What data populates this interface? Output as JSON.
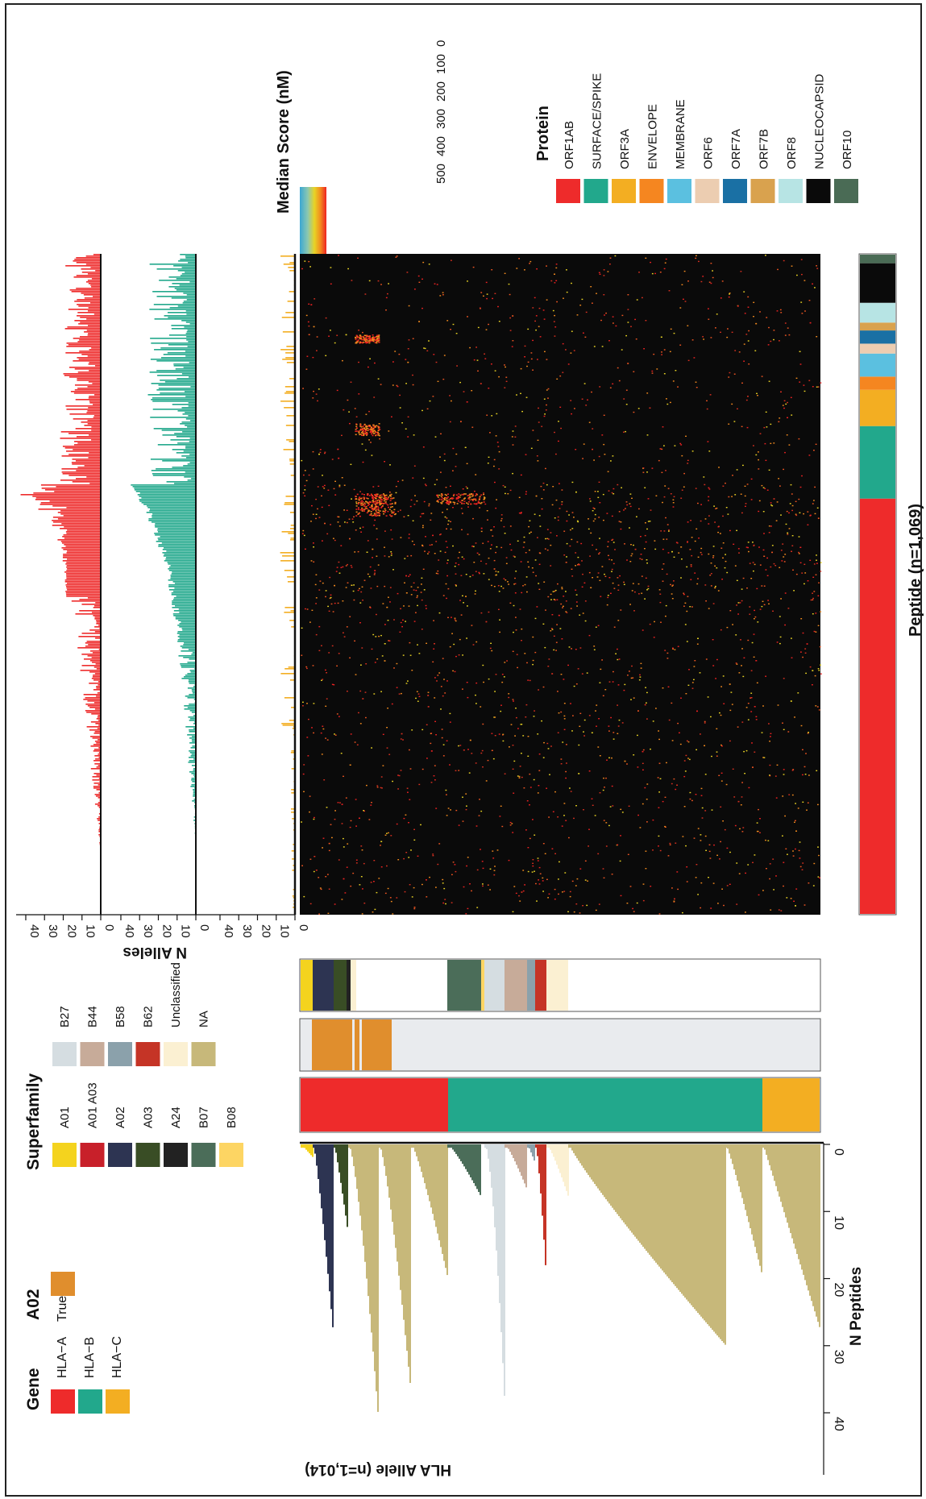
{
  "legends": {
    "gene": {
      "title": "Gene",
      "items": [
        {
          "label": "HLA−A",
          "color": "#ee2b2b"
        },
        {
          "label": "HLA−B",
          "color": "#22a88c"
        },
        {
          "label": "HLA−C",
          "color": "#f3ae22"
        }
      ]
    },
    "a02": {
      "title": "A02",
      "items": [
        {
          "label": "True",
          "color": "#e08e2d"
        }
      ]
    },
    "superfamily": {
      "title": "Superfamily",
      "col1": [
        {
          "label": "A01",
          "color": "#f4d31e"
        },
        {
          "label": "A01 A03",
          "color": "#c8202a"
        },
        {
          "label": "A02",
          "color": "#2d3452"
        },
        {
          "label": "A03",
          "color": "#394d25"
        },
        {
          "label": "A24",
          "color": "#222222"
        },
        {
          "label": "B07",
          "color": "#4b6d59"
        },
        {
          "label": "B08",
          "color": "#fdd563"
        }
      ],
      "col2": [
        {
          "label": "B27",
          "color": "#d5dde1"
        },
        {
          "label": "B44",
          "color": "#c7ab99"
        },
        {
          "label": "B58",
          "color": "#8ba1ab"
        },
        {
          "label": "B62",
          "color": "#c53426"
        },
        {
          "label": "Unclassified",
          "color": "#fbf0d2"
        },
        {
          "label": "NA",
          "color": "#c7b87a"
        }
      ]
    },
    "median": {
      "title": "Median Score (nM)",
      "ticks": [
        "500",
        "400",
        "300",
        "200",
        "100",
        "0"
      ],
      "stops": [
        "#3aa7d3",
        "#8cc8b0",
        "#e8d324",
        "#f28a1e",
        "#ee2222"
      ]
    },
    "protein": {
      "title": "Protein",
      "items": [
        {
          "label": "ORF1AB",
          "color": "#ee2b2b"
        },
        {
          "label": "SURFACE/SPIKE",
          "color": "#22a88c"
        },
        {
          "label": "ORF3A",
          "color": "#f3ae22"
        },
        {
          "label": "ENVELOPE",
          "color": "#f58620"
        },
        {
          "label": "MEMBRANE",
          "color": "#5bc0e0"
        },
        {
          "label": "ORF6",
          "color": "#eccdb1"
        },
        {
          "label": "ORF7A",
          "color": "#1a70a4"
        },
        {
          "label": "ORF7B",
          "color": "#d9a24e"
        },
        {
          "label": "ORF8",
          "color": "#b7e4e4"
        },
        {
          "label": "NUCLEOCAPSID",
          "color": "#0a0a0a"
        },
        {
          "label": "ORF10",
          "color": "#4a6b55"
        }
      ]
    }
  },
  "axes": {
    "hla_axis_label": "HLA Allele (n=1,014)",
    "n_peptides_label": "N Peptides",
    "n_peptides_ticks": [
      "0",
      "10",
      "20",
      "30",
      "40"
    ],
    "n_alleles_label": "N Alleles",
    "n_alleles_ticks": [
      "40",
      "30",
      "20",
      "10",
      "0"
    ],
    "peptide_axis_label": "Peptide (n=1,069)"
  },
  "chart_data": {
    "type": "heatmap",
    "description_of_layout": "rotated heatmap of HLA alleles vs SARS-CoV-2 peptides",
    "n_alleles_total": 1014,
    "n_peptides_total": 1069,
    "gene_fraction": {
      "HLA-A": 0.29,
      "HLA-B": 0.61,
      "HLA-C": 0.1
    },
    "protein_fraction": {
      "ORF1AB": 0.63,
      "SURFACE/SPIKE": 0.11,
      "ORF3A": 0.055,
      "ENVELOPE": 0.02,
      "MEMBRANE": 0.035,
      "ORF6": 0.015,
      "ORF7A": 0.02,
      "ORF7B": 0.012,
      "ORF8": 0.03,
      "NUCLEOCAPSID": 0.06,
      "ORF10": 0.013
    },
    "n_peptides_range": [
      0,
      43
    ],
    "n_alleles_range": [
      0,
      43
    ],
    "median_score_range_nM": [
      0,
      500
    ]
  }
}
